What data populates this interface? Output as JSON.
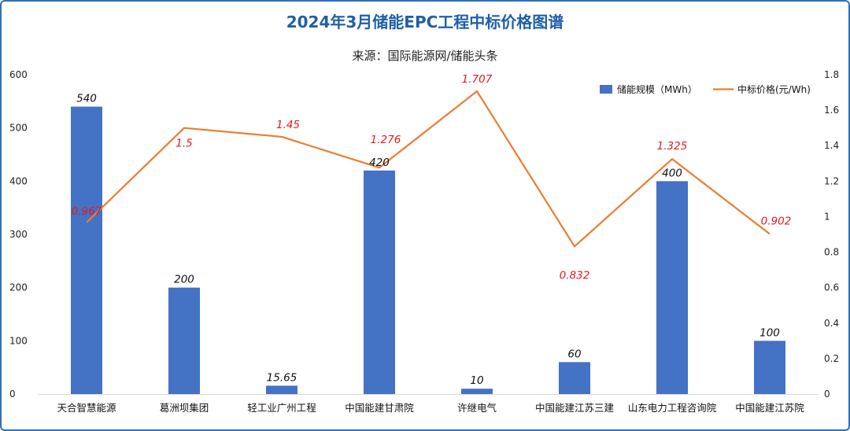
{
  "chart_data": {
    "type": "bar+line",
    "title": "2024年3月储能EPC工程中标价格图谱",
    "subtitle": "来源：国际能源网/储能头条",
    "categories": [
      "天合智慧能源",
      "葛洲坝集团",
      "轻工业广州工程",
      "中国能建甘肃院",
      "许继电气",
      "中国能建江苏三建",
      "山东电力工程咨询院",
      "中国能建江苏院"
    ],
    "series": [
      {
        "name": "储能规模（MWh）",
        "type": "bar",
        "axis": "left",
        "color": "#4472c4",
        "values": [
          540,
          200,
          15.65,
          420,
          10,
          60,
          400,
          100
        ],
        "labels": [
          "540",
          "200",
          "15.65",
          "420",
          "10",
          "60",
          "400",
          "100"
        ]
      },
      {
        "name": "中标价格(元/Wh)",
        "type": "line",
        "axis": "right",
        "color": "#ed7d31",
        "values": [
          0.967,
          1.5,
          1.45,
          1.276,
          1.707,
          0.832,
          1.325,
          0.902
        ],
        "labels": [
          "0.967",
          "1.5",
          "1.45",
          "1.276",
          "1.707",
          "0.832",
          "1.325",
          "0.902"
        ],
        "label_color": "#e31a1c"
      }
    ],
    "y_left": {
      "min": 0,
      "max": 600,
      "ticks": [
        "0",
        "100",
        "200",
        "300",
        "400",
        "500",
        "600"
      ]
    },
    "y_right": {
      "min": 0,
      "max": 1.8,
      "ticks": [
        "0",
        "0.2",
        "0.4",
        "0.6",
        "0.8",
        "1",
        "1.2",
        "1.4",
        "1.6",
        "1.8"
      ]
    },
    "legend_position": "top-right",
    "grid": false
  }
}
